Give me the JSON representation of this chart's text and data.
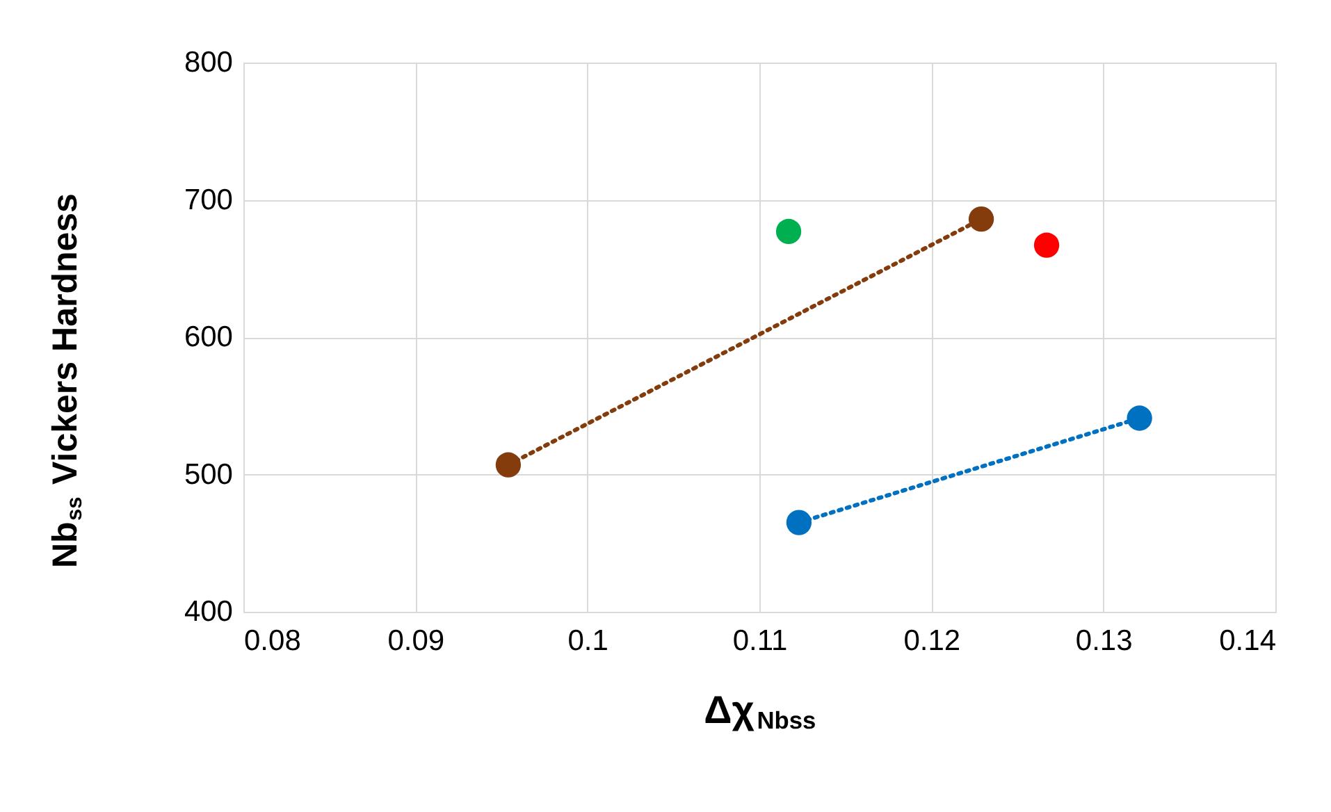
{
  "chart_data": {
    "type": "scatter",
    "xlabel": "Δχ$_{Nbss}$",
    "ylabel": "Nb$_{ss}$ Vickers Hardness",
    "xlim": [
      0.08,
      0.14
    ],
    "xticks": [
      0.08,
      0.09,
      0.1,
      0.11,
      0.12,
      0.13,
      0.14
    ],
    "ylim": [
      400,
      800
    ],
    "yticks": [
      400,
      500,
      600,
      700,
      800
    ],
    "grid": true,
    "marker": "circle",
    "series": [
      {
        "type": "line",
        "line_style": "dotted",
        "color": "#843c0c",
        "x": [
          0.0954,
          0.1229
        ],
        "values": [
          507,
          686
        ]
      },
      {
        "type": "line",
        "line_style": "dotted",
        "color": "#0070c0",
        "x": [
          0.1123,
          0.1321
        ],
        "values": [
          465,
          541
        ]
      },
      {
        "color": "#00b050",
        "x": [
          0.1117
        ],
        "values": [
          677
        ]
      },
      {
        "color": "#ff0000",
        "x": [
          0.1267
        ],
        "values": [
          667
        ]
      }
    ]
  }
}
